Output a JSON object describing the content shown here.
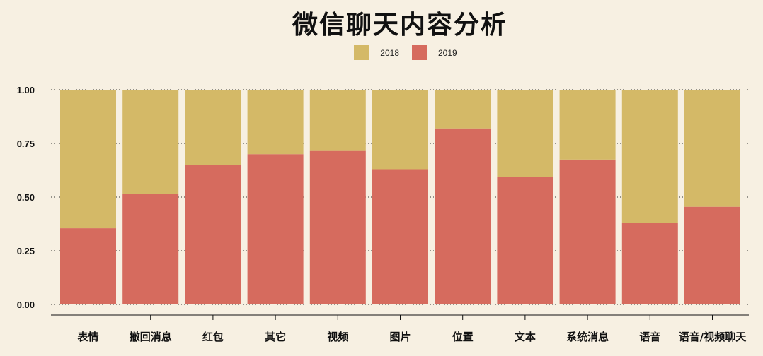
{
  "colors": {
    "y2018": "#d4b967",
    "y2019": "#d66b5e",
    "background": "#f7f0e2",
    "axis": "#111111"
  },
  "chart_data": {
    "type": "bar",
    "stacked": true,
    "normalized": true,
    "title": "微信聊天内容分析",
    "xlabel": "",
    "ylabel": "",
    "ylim": [
      0,
      1
    ],
    "yticks": [
      "0.00",
      "0.25",
      "0.50",
      "0.75",
      "1.00"
    ],
    "grid": "dotted horizontal",
    "legend_position": "top",
    "categories": [
      "表情",
      "撤回消息",
      "红包",
      "其它",
      "视频",
      "图片",
      "位置",
      "文本",
      "系统消息",
      "语音",
      "语音/视频聊天"
    ],
    "series": [
      {
        "name": "2019",
        "values": [
          0.355,
          0.515,
          0.65,
          0.7,
          0.715,
          0.63,
          0.82,
          0.595,
          0.675,
          0.38,
          0.455
        ]
      },
      {
        "name": "2018",
        "values": [
          0.645,
          0.485,
          0.35,
          0.3,
          0.285,
          0.37,
          0.18,
          0.405,
          0.325,
          0.62,
          0.545
        ]
      }
    ]
  }
}
